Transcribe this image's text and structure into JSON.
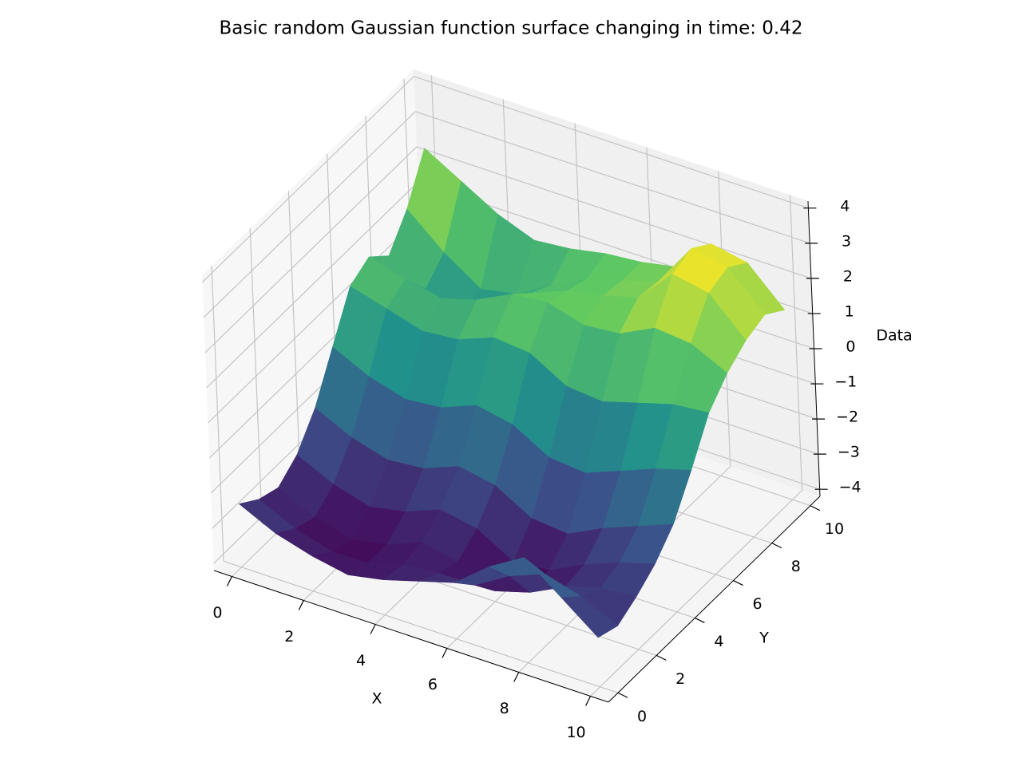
{
  "chart_data": {
    "type": "surface",
    "title": "Basic random Gaussian function surface changing in time: 0.42",
    "x_label": "X",
    "y_label": "Y",
    "z_label": "Data",
    "x": [
      0,
      1,
      2,
      3,
      4,
      5,
      6,
      7,
      8,
      9,
      10
    ],
    "y": [
      0,
      1,
      2,
      3,
      4,
      5,
      6,
      7,
      8,
      9,
      10
    ],
    "z": [
      [
        -2.4,
        -2.9,
        -3.2,
        -3.4,
        -3.2,
        -2.9,
        -2.6,
        -1.8,
        -1.2,
        -2.0,
        -2.8
      ],
      [
        -2.8,
        -3.3,
        -3.6,
        -3.6,
        -3.3,
        -3.2,
        -3.2,
        -2.6,
        -2.2,
        -2.5,
        -3.0
      ],
      [
        -3.0,
        -3.5,
        -3.8,
        -3.6,
        -3.2,
        -3.4,
        -3.9,
        -3.6,
        -3.1,
        -2.8,
        -2.7
      ],
      [
        -2.6,
        -3.1,
        -3.4,
        -3.2,
        -2.8,
        -3.0,
        -3.6,
        -3.5,
        -3.0,
        -2.6,
        -2.3
      ],
      [
        -1.8,
        -2.3,
        -2.6,
        -2.5,
        -2.1,
        -2.3,
        -2.9,
        -3.0,
        -2.5,
        -2.1,
        -1.7
      ],
      [
        -0.6,
        -1.1,
        -1.4,
        -1.3,
        -0.9,
        -1.1,
        -1.7,
        -1.8,
        -1.4,
        -1.0,
        -0.7
      ],
      [
        0.6,
        0.3,
        0.0,
        0.1,
        0.5,
        0.4,
        -0.2,
        -0.3,
        0.0,
        0.3,
        0.4
      ],
      [
        0.9,
        0.6,
        0.4,
        0.7,
        1.2,
        1.3,
        1.0,
        1.1,
        1.6,
        1.5,
        1.0
      ],
      [
        0.4,
        -0.2,
        -0.5,
        0.0,
        0.7,
        1.1,
        1.3,
        1.6,
        2.6,
        2.4,
        1.4
      ],
      [
        1.2,
        0.3,
        -0.4,
        -0.2,
        0.4,
        0.9,
        1.2,
        1.5,
        2.8,
        2.6,
        1.6
      ],
      [
        2.4,
        1.8,
        1.2,
        0.8,
        0.9,
        1.1,
        1.2,
        1.4,
        2.4,
        2.2,
        1.2
      ]
    ],
    "colormap": [
      "#440154",
      "#3b528b",
      "#21918c",
      "#5ec962",
      "#fde725"
    ],
    "xlim": [
      -0.5,
      10.5
    ],
    "ylim": [
      -0.5,
      10.5
    ],
    "zlim": [
      -4.2,
      4.2
    ],
    "xticks": [
      0,
      2,
      4,
      6,
      8,
      10
    ],
    "yticks": [
      0,
      2,
      4,
      6,
      8,
      10
    ],
    "zticks": [
      {
        "value": -4,
        "label": "−4"
      },
      {
        "value": -3,
        "label": "−3"
      },
      {
        "value": -2,
        "label": "−2"
      },
      {
        "value": -1,
        "label": "−1"
      },
      0,
      1,
      2,
      3,
      4
    ],
    "grid": true
  }
}
